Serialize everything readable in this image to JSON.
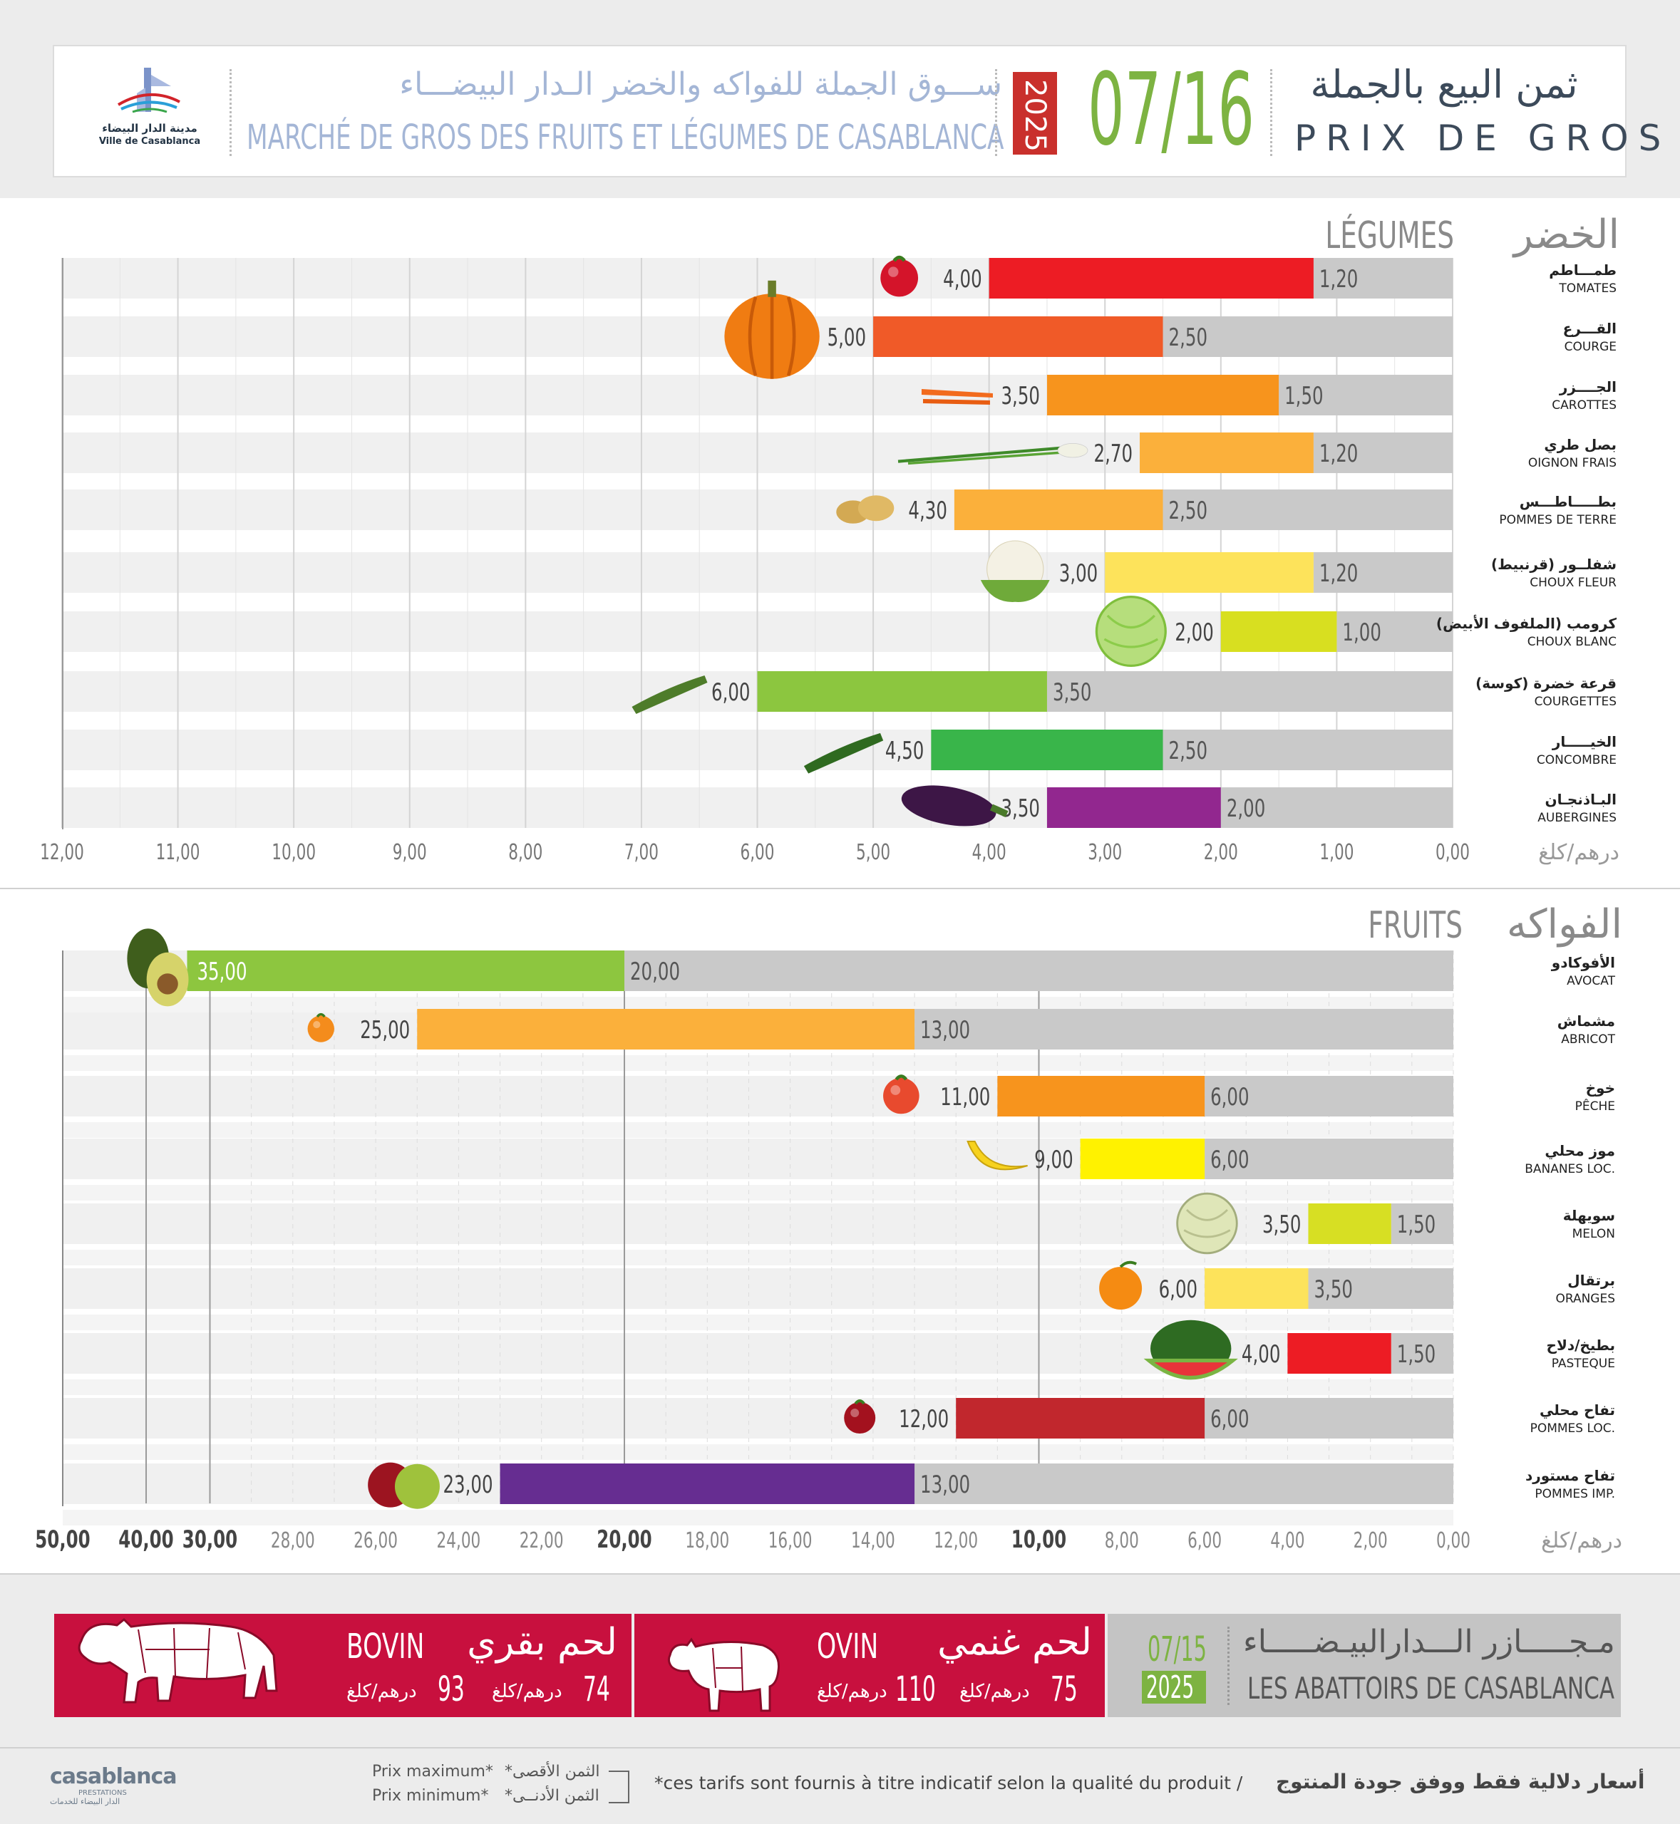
{
  "header": {
    "city_logo_ar": "مدينة الدار البيضاء",
    "city_logo_fr": "Ville de Casablanca",
    "market_ar": "ســـوق الجملة للفواكه والخضر الـدار البيضـــاء",
    "market_fr": "MARCHÉ DE GROS DES FRUITS ET LÉGUMES DE CASABLANCA",
    "year": "2025",
    "date": "07/16",
    "title_ar": "ثمن البيع بالجملة",
    "title_fr": "PRIX DE GROS"
  },
  "colors": {
    "accent_green": "#7db342",
    "year_red": "#c9302c",
    "header_blue": "#a4b6d6",
    "meat_red": "#c8103e",
    "grey_bar": "#c9c9c9"
  },
  "chart_data": [
    {
      "type": "bar",
      "orientation": "horizontal",
      "title_fr": "LÉGUMES",
      "title_ar": "الخضر",
      "unit": "درهم/كلغ",
      "xlim": [
        0,
        12
      ],
      "x_reversed": true,
      "tick_labels": [
        "12,00",
        "11,00",
        "10,00",
        "9,00",
        "8,00",
        "7,00",
        "6,00",
        "5,00",
        "4,00",
        "3,00",
        "2,00",
        "1,00",
        "0,00"
      ],
      "items": [
        {
          "ar": "طمـــاطم",
          "fr": "TOMATES",
          "min": 1.2,
          "max": 4.0,
          "min_label": "1,20",
          "max_label": "4,00",
          "color": "#ed1c24",
          "icon": "tomato-icon"
        },
        {
          "ar": "القـــرع",
          "fr": "COURGE",
          "min": 2.5,
          "max": 5.0,
          "min_label": "2,50",
          "max_label": "5,00",
          "color": "#f05a28",
          "icon": "pumpkin-icon"
        },
        {
          "ar": "الجــــزر",
          "fr": "CAROTTES",
          "min": 1.5,
          "max": 3.5,
          "min_label": "1,50",
          "max_label": "3,50",
          "color": "#f7941d",
          "icon": "carrot-icon"
        },
        {
          "ar": "بصل طري",
          "fr": "OIGNON FRAIS",
          "min": 1.2,
          "max": 2.7,
          "min_label": "1,20",
          "max_label": "2,70",
          "color": "#fbb03b",
          "icon": "spring-onion-icon"
        },
        {
          "ar": "بطـــــاطـــس",
          "fr": "POMMES DE TERRE",
          "min": 2.5,
          "max": 4.3,
          "min_label": "2,50",
          "max_label": "4,30",
          "color": "#fbb03b",
          "icon": "potato-icon"
        },
        {
          "ar": "شفلــور (قرنبيط)",
          "fr": "CHOUX FLEUR",
          "min": 1.2,
          "max": 3.0,
          "min_label": "1,20",
          "max_label": "3,00",
          "color": "#fde35b",
          "icon": "cauliflower-icon"
        },
        {
          "ar": "كرومب (الملفوف الأبيض)",
          "fr": "CHOUX BLANC",
          "min": 1.0,
          "max": 2.0,
          "min_label": "1,00",
          "max_label": "2,00",
          "color": "#d8df20",
          "icon": "cabbage-icon"
        },
        {
          "ar": "قرعة خضرة (كوسة)",
          "fr": "COURGETTES",
          "min": 3.5,
          "max": 6.0,
          "min_label": "3,50",
          "max_label": "6,00",
          "color": "#8cc63f",
          "icon": "zucchini-icon"
        },
        {
          "ar": "الخيـــــار",
          "fr": "CONCOMBRE",
          "min": 2.5,
          "max": 4.5,
          "min_label": "2,50",
          "max_label": "4,50",
          "color": "#39b54a",
          "icon": "cucumber-icon"
        },
        {
          "ar": "البـاذنجـان",
          "fr": "AUBERGINES",
          "min": 2.0,
          "max": 3.5,
          "min_label": "2,00",
          "max_label": "3,50",
          "color": "#92278f",
          "icon": "eggplant-icon"
        }
      ]
    },
    {
      "type": "bar",
      "orientation": "horizontal",
      "title_fr": "FRUITS",
      "title_ar": "الفواكه",
      "unit": "درهم/كلغ",
      "xlim": [
        0,
        50
      ],
      "x_reversed": true,
      "axis_breaks": [
        {
          "value": 0,
          "label": "0,00"
        },
        {
          "value": 2,
          "label": "2,00"
        },
        {
          "value": 4,
          "label": "4,00"
        },
        {
          "value": 6,
          "label": "6,00"
        },
        {
          "value": 8,
          "label": "8,00"
        },
        {
          "value": 10,
          "label": "10,00"
        },
        {
          "value": 12,
          "label": "12,00"
        },
        {
          "value": 14,
          "label": "14,00"
        },
        {
          "value": 16,
          "label": "16,00"
        },
        {
          "value": 18,
          "label": "18,00"
        },
        {
          "value": 20,
          "label": "20,00"
        },
        {
          "value": 22,
          "label": "22,00"
        },
        {
          "value": 24,
          "label": "24,00"
        },
        {
          "value": 26,
          "label": "26,00"
        },
        {
          "value": 28,
          "label": "28,00"
        },
        {
          "value": 30,
          "label": "30,00"
        },
        {
          "value": 40,
          "label": "40,00"
        },
        {
          "value": 50,
          "label": "50,00"
        }
      ],
      "bold_ticks": [
        "10,00",
        "20,00",
        "30,00",
        "40,00",
        "50,00"
      ],
      "items": [
        {
          "ar": "الأفوكادو",
          "fr": "AVOCAT",
          "min": 20,
          "max": 35,
          "min_label": "20,00",
          "max_label": "35,00",
          "color": "#8dc63f",
          "icon": "avocado-icon"
        },
        {
          "ar": "مشماش",
          "fr": "ABRICOT",
          "min": 13,
          "max": 25,
          "min_label": "13,00",
          "max_label": "25,00",
          "color": "#fbb03b",
          "icon": "apricot-icon"
        },
        {
          "ar": "خوخ",
          "fr": "PÊCHE",
          "min": 6,
          "max": 11,
          "min_label": "6,00",
          "max_label": "11,00",
          "color": "#f7941d",
          "icon": "peach-icon"
        },
        {
          "ar": "موز محلي",
          "fr": "BANANES LOC.",
          "min": 6,
          "max": 9,
          "min_label": "6,00",
          "max_label": "9,00",
          "color": "#fff200",
          "icon": "banana-icon"
        },
        {
          "ar": "سويهلة",
          "fr": "MELON",
          "min": 1.5,
          "max": 3.5,
          "min_label": "1,50",
          "max_label": "3,50",
          "color": "#d7df23",
          "icon": "melon-icon"
        },
        {
          "ar": "برتقال",
          "fr": "ORANGES",
          "min": 3.5,
          "max": 6,
          "min_label": "3,50",
          "max_label": "6,00",
          "color": "#fde35b",
          "icon": "orange-icon"
        },
        {
          "ar": "بطيخ/دلاح",
          "fr": "PASTEQUE",
          "min": 1.5,
          "max": 4,
          "min_label": "1,50",
          "max_label": "4,00",
          "color": "#ed1c24",
          "icon": "watermelon-icon"
        },
        {
          "ar": "تفاح محلي",
          "fr": "POMMES LOC.",
          "min": 6,
          "max": 12,
          "min_label": "6,00",
          "max_label": "12,00",
          "color": "#c1272d",
          "icon": "apple-icon"
        },
        {
          "ar": "تفاح مستورد",
          "fr": "POMMES IMP.",
          "min": 13,
          "max": 23,
          "min_label": "13,00",
          "max_label": "23,00",
          "color": "#662d91",
          "icon": "apples-icon"
        }
      ]
    }
  ],
  "meat": {
    "bovin": {
      "fr": "BOVIN",
      "ar": "لحم بقري",
      "min": "74",
      "max": "93",
      "unit": "درهم/كلغ"
    },
    "ovin": {
      "fr": "OVIN",
      "ar": "لحم غنمي",
      "min": "75",
      "max": "110",
      "unit": "درهم/كلغ"
    },
    "abattoir": {
      "date": "07/15",
      "year": "2025",
      "ar": "مـجـــــازر الـــدارالبيـضـــــاء",
      "fr": "LES ABATTOIRS DE CASABLANCA"
    }
  },
  "footer": {
    "logo_main": "casablanca",
    "logo_sub": "PRESTATIONS",
    "logo_ar": "الدار البيضاء للخدمات",
    "legend_max_fr": "Prix maximum*",
    "legend_min_fr": "Prix minimum*",
    "legend_max_ar": "*الثمن الأقصى",
    "legend_min_ar": "*الثمن الأدنــى",
    "disclaimer_fr": "*ces tarifs sont fournis à titre indicatif selon la qualité du produit  /",
    "disclaimer_ar": "أسعار دلالية فقط ووفق جودة المنتوج"
  }
}
